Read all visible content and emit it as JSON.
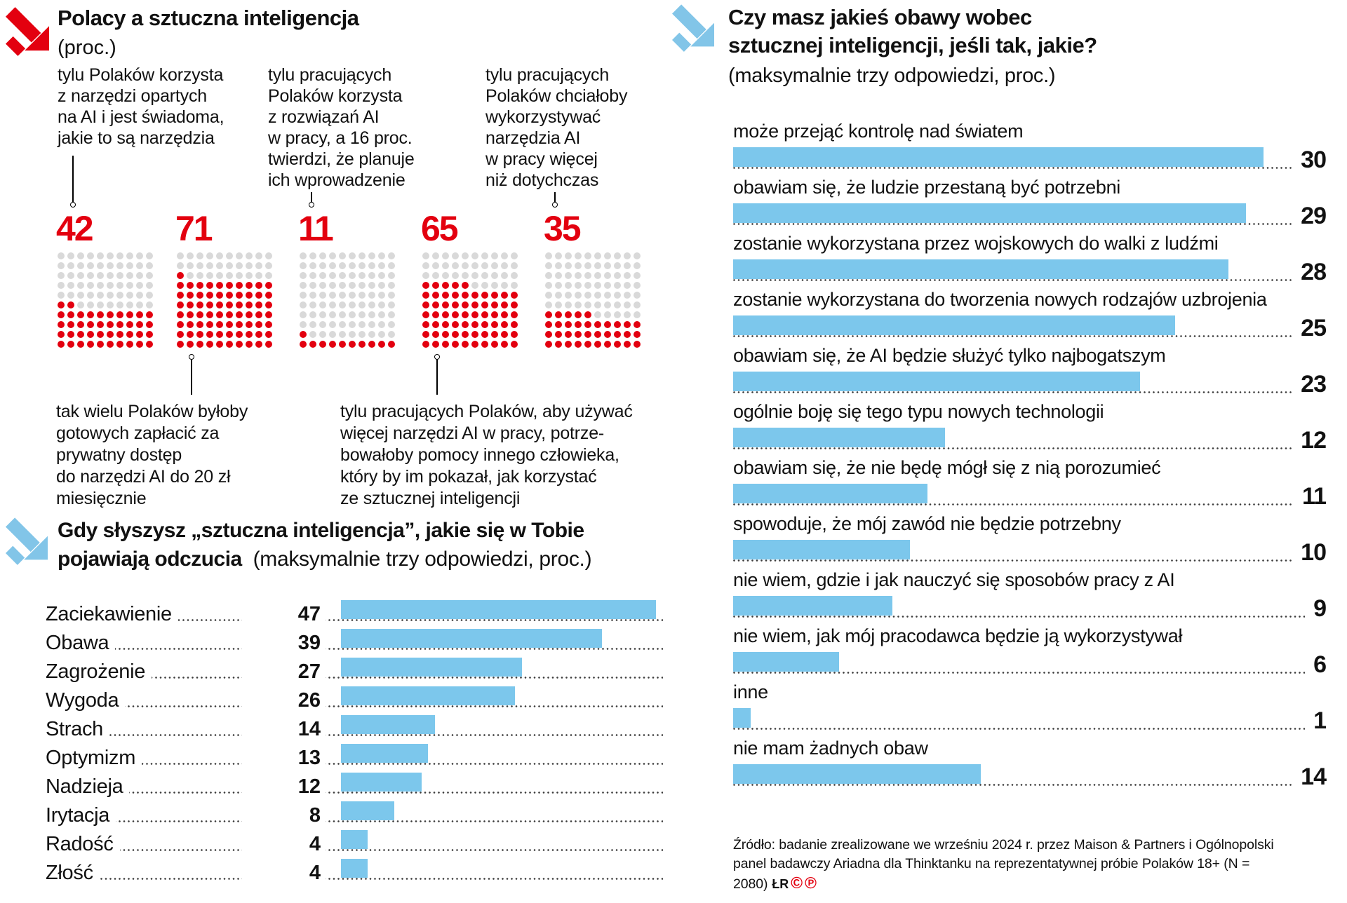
{
  "ui": {
    "colors": {
      "red": "#e3000f",
      "gray_dot": "#d9d9d9",
      "blue": "#7cc7ec",
      "arrow_blue": "#82c5e8"
    },
    "left_top": {
      "title": "Polacy a sztuczna inteligencja",
      "subtitle": "(proc.)",
      "notes_top": [
        "tylu Polaków korzysta\nz narzędzi opartych\nna AI i jest świadoma,\njakie to są narzędzia",
        "tylu pracujących\nPolaków korzysta\nz rozwiązań AI\nw pracy, a 16 proc.\ntwierdzi, że planuje\nich wprowadzenie",
        "tylu pracujących\nPolaków chciałoby\nwykorzystywać\nnarzędzia AI\nw pracy więcej\nniż dotychczas"
      ],
      "notes_bottom": [
        "tak wielu Polaków byłoby\ngotowych zapłacić za\nprywatny dostęp\ndo narzędzi AI do 20 zł\nmiesięcznie",
        "tylu pracujących Polaków, aby używać\nwięcej narzędzi AI w pracy, potrze-\nbowałoby pomocy innego człowieka,\nktóry by im pokazał, jak korzystać\nze sztucznej inteligencji"
      ]
    },
    "feelings": {
      "title_bold": "Gdy słyszysz „sztuczna inteligencja”, jakie się w Tobie\npojawiają odczucia",
      "title_note": "(maksymalnie trzy odpowiedzi, proc.)"
    },
    "concerns": {
      "title_bold": "Czy masz jakieś obawy wobec\nsztucznej inteligencji, jeśli tak, jakie?",
      "title_note": "(maksymalnie trzy odpowiedzi, proc.)"
    },
    "source": {
      "text": "Źródło: badanie zrealizowane we wrześniu 2024 r. przez Maison & Partners i Ogólnopolski\npanel badawczy Ariadna dla Thinktanku na reprezentatywnej próbie Polaków 18+ (N = 2080)",
      "initials": "ŁR",
      "badges": [
        "©",
        "℗"
      ]
    }
  },
  "chart_data": [
    {
      "type": "pictograph",
      "title": "Polacy a sztuczna inteligencja",
      "unit": "proc.",
      "grid": "10x10 dots, red = value, fill from bottom-left",
      "values": [
        {
          "value": 42,
          "note": "tylu Polaków korzysta z narzędzi opartych na AI i jest świadoma, jakie to są narzędzia"
        },
        {
          "value": 71,
          "note": "tak wielu Polaków byłoby gotowych zapłacić za prywatny dostęp do narzędzi AI do 20 zł miesięcznie"
        },
        {
          "value": 11,
          "note": "tylu pracujących Polaków korzysta z rozwiązań AI w pracy, a 16 proc. twierdzi, że planuje ich wprowadzenie"
        },
        {
          "value": 65,
          "note": "tylu pracujących Polaków, aby używać więcej narzędzi AI w pracy, potrzebowałoby pomocy innego człowieka, który by im pokazał, jak korzystać ze sztucznej inteligencji"
        },
        {
          "value": 35,
          "note": "tylu pracujących Polaków chciałoby wykorzystywać narzędzia AI w pracy więcej niż dotychczas"
        }
      ]
    },
    {
      "type": "bar",
      "orientation": "horizontal",
      "title": "Gdy słyszysz „sztuczna inteligencja”, jakie się w Tobie pojawiają odczucia",
      "subtitle": "(maksymalnie trzy odpowiedzi, proc.)",
      "categories": [
        "Zaciekawienie",
        "Obawa",
        "Zagrożenie",
        "Wygoda",
        "Strach",
        "Optymizm",
        "Nadzieja",
        "Irytacja",
        "Radość",
        "Złość"
      ],
      "values": [
        47,
        39,
        27,
        26,
        14,
        13,
        12,
        8,
        4,
        4
      ],
      "xlim": [
        0,
        48
      ],
      "bar_color": "#7cc7ec"
    },
    {
      "type": "bar",
      "orientation": "horizontal",
      "title": "Czy masz jakieś obawy wobec sztucznej inteligencji, jeśli tak, jakie?",
      "subtitle": "(maksymalnie trzy odpowiedzi, proc.)",
      "categories": [
        "może przejąć kontrolę nad światem",
        "obawiam się, że ludzie przestaną być potrzebni",
        "zostanie wykorzystana przez wojskowych do walki z ludźmi",
        "zostanie wykorzystana do tworzenia nowych rodzajów uzbrojenia",
        "obawiam się, że AI będzie służyć tylko najbogatszym",
        "ogólnie boję się tego typu nowych technologii",
        "obawiam się, że nie będę mógł się z nią porozumieć",
        "spowoduje, że mój zawód nie będzie potrzebny",
        "nie wiem, gdzie i jak nauczyć się sposobów pracy z AI",
        "nie wiem, jak mój pracodawca będzie ją wykorzystywał",
        "inne",
        "nie mam żadnych obaw"
      ],
      "values": [
        30,
        29,
        28,
        25,
        23,
        12,
        11,
        10,
        9,
        6,
        1,
        14
      ],
      "xlim": [
        0,
        30
      ],
      "bar_color": "#7cc7ec"
    }
  ]
}
